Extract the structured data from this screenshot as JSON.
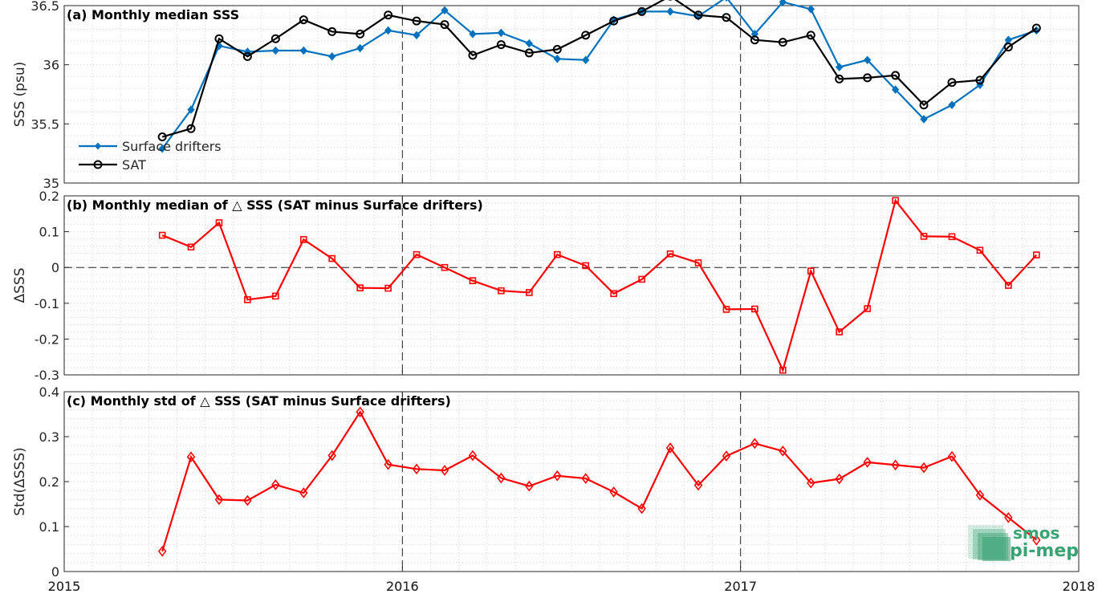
{
  "chart_data": [
    {
      "type": "line",
      "title": "(a) Monthly median SSS",
      "ylabel": "SSS (psu)",
      "ylim": [
        35,
        36.5
      ],
      "yticks": [
        "35",
        "35.5",
        "36",
        "36.5"
      ],
      "xlim": [
        2015,
        2018
      ],
      "xticks": [
        "2015",
        "2016",
        "2017",
        "2018"
      ],
      "grid": true,
      "legend": "bottom-left",
      "x": [
        2015.29,
        2015.375,
        2015.458,
        2015.542,
        2015.625,
        2015.708,
        2015.792,
        2015.875,
        2015.958,
        2016.042,
        2016.125,
        2016.208,
        2016.292,
        2016.375,
        2016.458,
        2016.542,
        2016.625,
        2016.708,
        2016.792,
        2016.875,
        2016.958,
        2017.042,
        2017.125,
        2017.208,
        2017.292,
        2017.375,
        2017.458,
        2017.542,
        2017.625,
        2017.708,
        2017.792,
        2017.875
      ],
      "series": [
        {
          "name": "Surface drifters",
          "color": "#0072bd",
          "marker": "filled-diamond",
          "values": [
            35.29,
            35.62,
            36.16,
            36.11,
            36.12,
            36.12,
            36.07,
            36.14,
            36.29,
            36.25,
            36.46,
            36.26,
            36.27,
            36.18,
            36.05,
            36.04,
            36.38,
            36.45,
            36.45,
            36.41,
            36.57,
            36.26,
            36.53,
            36.47,
            35.98,
            36.04,
            35.79,
            35.54,
            35.66,
            35.83,
            36.21,
            36.29
          ]
        },
        {
          "name": "SAT",
          "color": "#000000",
          "marker": "open-circle",
          "values": [
            35.39,
            35.46,
            36.22,
            36.07,
            36.22,
            36.38,
            36.28,
            36.26,
            36.42,
            36.37,
            36.34,
            36.08,
            36.17,
            36.1,
            36.13,
            36.25,
            36.37,
            36.45,
            36.58,
            36.42,
            36.4,
            36.21,
            36.19,
            36.25,
            35.88,
            35.89,
            35.91,
            35.66,
            35.85,
            35.87,
            36.15,
            36.31
          ]
        }
      ]
    },
    {
      "type": "line",
      "title": "(b) Monthly median of △ SSS (SAT minus Surface drifters)",
      "ylabel": "ΔSSS",
      "ylim": [
        -0.3,
        0.2
      ],
      "yticks": [
        "-0.3",
        "-0.2",
        "-0.1",
        "0",
        "0.1",
        "0.2"
      ],
      "xlim": [
        2015,
        2018
      ],
      "zero_line": true,
      "grid": true,
      "x": [
        2015.29,
        2015.375,
        2015.458,
        2015.542,
        2015.625,
        2015.708,
        2015.792,
        2015.875,
        2015.958,
        2016.042,
        2016.125,
        2016.208,
        2016.292,
        2016.375,
        2016.458,
        2016.542,
        2016.625,
        2016.708,
        2016.792,
        2016.875,
        2016.958,
        2017.042,
        2017.125,
        2017.208,
        2017.292,
        2017.375,
        2017.458,
        2017.542,
        2017.625,
        2017.708,
        2017.792,
        2017.875
      ],
      "series": [
        {
          "color": "#ff0000",
          "marker": "open-square",
          "values": [
            0.09,
            0.057,
            0.125,
            -0.09,
            -0.08,
            0.078,
            0.025,
            -0.057,
            -0.058,
            0.036,
            0.0,
            -0.037,
            -0.065,
            -0.07,
            0.036,
            0.005,
            -0.073,
            -0.033,
            0.038,
            0.013,
            -0.117,
            -0.116,
            -0.287,
            -0.01,
            -0.18,
            -0.115,
            0.187,
            0.087,
            0.086,
            0.048,
            -0.05,
            0.035
          ]
        }
      ]
    },
    {
      "type": "line",
      "title": "(c) Monthly std of △ SSS (SAT minus Surface drifters)",
      "ylabel": "Std(ΔSSS)",
      "ylim": [
        0,
        0.4
      ],
      "yticks": [
        "0",
        "0.1",
        "0.2",
        "0.3",
        "0.4"
      ],
      "xlim": [
        2015,
        2018
      ],
      "xticks": [
        "2015",
        "2016",
        "2017",
        "2018"
      ],
      "grid": true,
      "x": [
        2015.29,
        2015.375,
        2015.458,
        2015.542,
        2015.625,
        2015.708,
        2015.792,
        2015.875,
        2015.958,
        2016.042,
        2016.125,
        2016.208,
        2016.292,
        2016.375,
        2016.458,
        2016.542,
        2016.625,
        2016.708,
        2016.792,
        2016.875,
        2016.958,
        2017.042,
        2017.125,
        2017.208,
        2017.292,
        2017.375,
        2017.458,
        2017.542,
        2017.625,
        2017.708,
        2017.792,
        2017.875
      ],
      "series": [
        {
          "color": "#ff0000",
          "marker": "open-diamond",
          "values": [
            0.045,
            0.255,
            0.16,
            0.158,
            0.193,
            0.175,
            0.258,
            0.355,
            0.238,
            0.228,
            0.225,
            0.258,
            0.208,
            0.19,
            0.213,
            0.207,
            0.177,
            0.14,
            0.275,
            0.192,
            0.257,
            0.285,
            0.268,
            0.197,
            0.206,
            0.243,
            0.237,
            0.231,
            0.256,
            0.17,
            0.12,
            0.07
          ]
        }
      ]
    }
  ],
  "logo": {
    "line1": "smos",
    "line2": "pi-mep",
    "color": "#3aa273"
  }
}
